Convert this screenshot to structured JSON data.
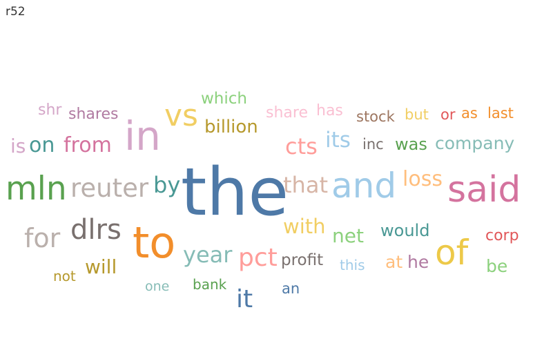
{
  "sheet_title": "r52",
  "chart_data": {
    "type": "wordcloud",
    "words": [
      {
        "text": "the",
        "size": 95,
        "color": "#4e79a7"
      },
      {
        "text": "said",
        "size": 52,
        "color": "#d4739e"
      },
      {
        "text": "of",
        "size": 50,
        "color": "#edc948"
      },
      {
        "text": "and",
        "size": 50,
        "color": "#a0cbe8"
      },
      {
        "text": "to",
        "size": 62,
        "color": "#f28e2b"
      },
      {
        "text": "in",
        "size": 58,
        "color": "#d4a6c8"
      },
      {
        "text": "mln",
        "size": 47,
        "color": "#59a14f"
      },
      {
        "text": "vs",
        "size": 44,
        "color": "#f1ce63"
      },
      {
        "text": "reuter",
        "size": 37,
        "color": "#bab0ac"
      },
      {
        "text": "dlrs",
        "size": 40,
        "color": "#79706e"
      },
      {
        "text": "for",
        "size": 38,
        "color": "#bab0ac"
      },
      {
        "text": "it",
        "size": 36,
        "color": "#4e79a7"
      },
      {
        "text": "pct",
        "size": 36,
        "color": "#ff9d9a"
      },
      {
        "text": "that",
        "size": 32,
        "color": "#d7b5a6"
      },
      {
        "text": "by",
        "size": 32,
        "color": "#499894"
      },
      {
        "text": "year",
        "size": 32,
        "color": "#86bcb6"
      },
      {
        "text": "cts",
        "size": 32,
        "color": "#ff9d9a"
      },
      {
        "text": "its",
        "size": 31,
        "color": "#a0cbe8"
      },
      {
        "text": "loss",
        "size": 30,
        "color": "#ffbe7d"
      },
      {
        "text": "from",
        "size": 30,
        "color": "#d4739e"
      },
      {
        "text": "on",
        "size": 30,
        "color": "#499894"
      },
      {
        "text": "with",
        "size": 29,
        "color": "#f1ce63"
      },
      {
        "text": "net",
        "size": 28,
        "color": "#8cd17d"
      },
      {
        "text": "is",
        "size": 28,
        "color": "#d4a6c8"
      },
      {
        "text": "will",
        "size": 28,
        "color": "#b6992d"
      },
      {
        "text": "billion",
        "size": 26,
        "color": "#b6992d"
      },
      {
        "text": "company",
        "size": 25,
        "color": "#86bcb6"
      },
      {
        "text": "at",
        "size": 25,
        "color": "#ffbe7d"
      },
      {
        "text": "he",
        "size": 25,
        "color": "#b07aa1"
      },
      {
        "text": "be",
        "size": 25,
        "color": "#8cd17d"
      },
      {
        "text": "would",
        "size": 24,
        "color": "#499894"
      },
      {
        "text": "was",
        "size": 24,
        "color": "#59a14f"
      },
      {
        "text": "profit",
        "size": 23,
        "color": "#79706e"
      },
      {
        "text": "which",
        "size": 23,
        "color": "#8cd17d"
      },
      {
        "text": "share",
        "size": 22,
        "color": "#fabfd2"
      },
      {
        "text": "has",
        "size": 22,
        "color": "#fabfd2"
      },
      {
        "text": "shr",
        "size": 22,
        "color": "#d4a6c8"
      },
      {
        "text": "shares",
        "size": 22,
        "color": "#b07aa1"
      },
      {
        "text": "corp",
        "size": 22,
        "color": "#e15759"
      },
      {
        "text": "stock",
        "size": 21,
        "color": "#9d7660"
      },
      {
        "text": "but",
        "size": 21,
        "color": "#f1ce63"
      },
      {
        "text": "or",
        "size": 21,
        "color": "#e15759"
      },
      {
        "text": "as",
        "size": 21,
        "color": "#f28e2b"
      },
      {
        "text": "last",
        "size": 21,
        "color": "#f28e2b"
      },
      {
        "text": "inc",
        "size": 21,
        "color": "#79706e"
      },
      {
        "text": "an",
        "size": 21,
        "color": "#4e79a7"
      },
      {
        "text": "bank",
        "size": 20,
        "color": "#59a14f"
      },
      {
        "text": "this",
        "size": 20,
        "color": "#a0cbe8"
      },
      {
        "text": "not",
        "size": 20,
        "color": "#b6992d"
      },
      {
        "text": "one",
        "size": 19,
        "color": "#86bcb6"
      }
    ]
  }
}
